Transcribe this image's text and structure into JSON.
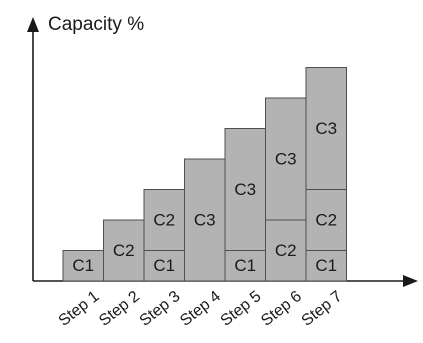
{
  "chart_data": {
    "type": "bar",
    "stacked": true,
    "title": "",
    "ylabel": "Capacity %",
    "xlabel": "",
    "categories": [
      "Step 1",
      "Step 2",
      "Step 3",
      "Step 4",
      "Step 5",
      "Step 6",
      "Step 7"
    ],
    "segments": [
      [
        {
          "label": "C1",
          "value": 1
        }
      ],
      [
        {
          "label": "C2",
          "value": 2
        }
      ],
      [
        {
          "label": "C1",
          "value": 1
        },
        {
          "label": "C2",
          "value": 2
        }
      ],
      [
        {
          "label": "C3",
          "value": 4
        }
      ],
      [
        {
          "label": "C1",
          "value": 1
        },
        {
          "label": "C3",
          "value": 4
        }
      ],
      [
        {
          "label": "C2",
          "value": 2
        },
        {
          "label": "C3",
          "value": 4
        }
      ],
      [
        {
          "label": "C1",
          "value": 1
        },
        {
          "label": "C2",
          "value": 2
        },
        {
          "label": "C3",
          "value": 4
        }
      ]
    ],
    "ylim": [
      0,
      8
    ],
    "grid": false,
    "colors": {
      "bar_fill": "#b3b3b3",
      "bar_stroke": "#4f4f4f",
      "axis": "#1a1a1a"
    }
  }
}
